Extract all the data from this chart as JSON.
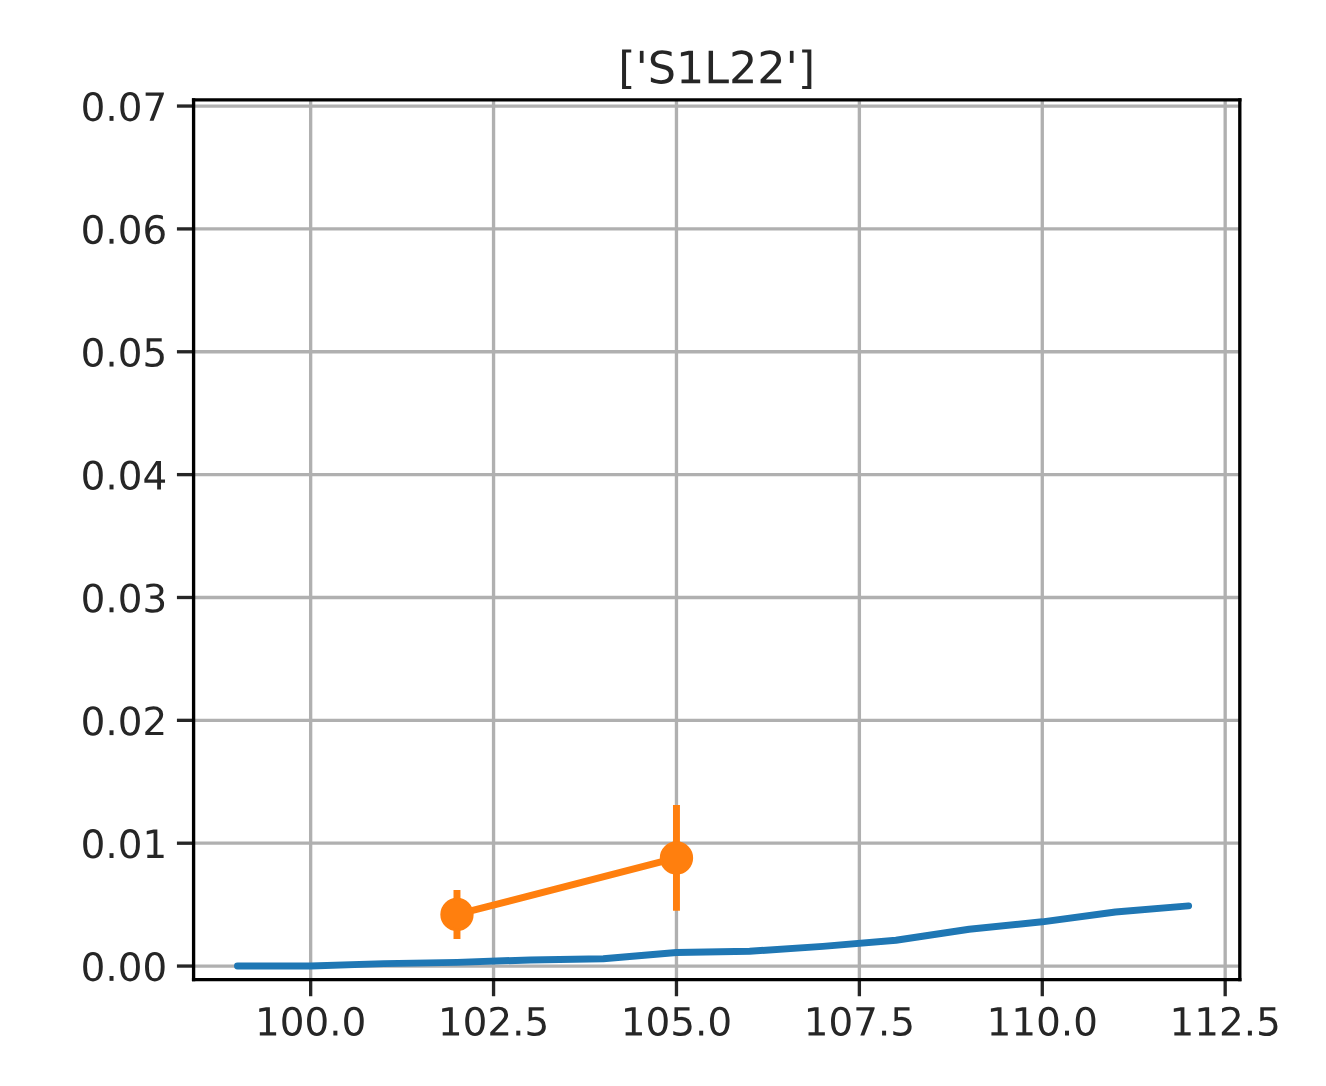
{
  "chart_data": {
    "type": "line",
    "title": "['S1L22']",
    "series": [
      {
        "color": "#1f77b4",
        "marker": "none",
        "x": [
          99,
          100,
          101,
          102,
          103,
          104,
          105,
          106,
          107,
          108,
          109,
          110,
          111,
          112
        ],
        "values": [
          0.0,
          0.0,
          0.0002,
          0.0003,
          0.0005,
          0.0006,
          0.0011,
          0.0012,
          0.0016,
          0.0021,
          0.003,
          0.0036,
          0.0044,
          0.0049
        ]
      },
      {
        "color": "#ff7f0e",
        "marker": "circle",
        "x": [
          102,
          105
        ],
        "values": [
          0.0042,
          0.0088
        ],
        "errors": [
          0.002,
          0.0043
        ]
      }
    ],
    "xlim": [
      98.4,
      112.7
    ],
    "ylim": [
      -0.0011,
      0.0705
    ],
    "xticks": [
      {
        "value": 100,
        "label": "100.0"
      },
      {
        "value": 102.5,
        "label": "102.5"
      },
      {
        "value": 105,
        "label": "105.0"
      },
      {
        "value": 107.5,
        "label": "107.5"
      },
      {
        "value": 110,
        "label": "110.0"
      },
      {
        "value": 112.5,
        "label": "112.5"
      }
    ],
    "yticks": [
      {
        "value": 0,
        "label": "0.00"
      },
      {
        "value": 0.01,
        "label": "0.01"
      },
      {
        "value": 0.02,
        "label": "0.02"
      },
      {
        "value": 0.03,
        "label": "0.03"
      },
      {
        "value": 0.04,
        "label": "0.04"
      },
      {
        "value": 0.05,
        "label": "0.05"
      },
      {
        "value": 0.06,
        "label": "0.06"
      },
      {
        "value": 0.07,
        "label": "0.07"
      }
    ],
    "grid": true
  }
}
